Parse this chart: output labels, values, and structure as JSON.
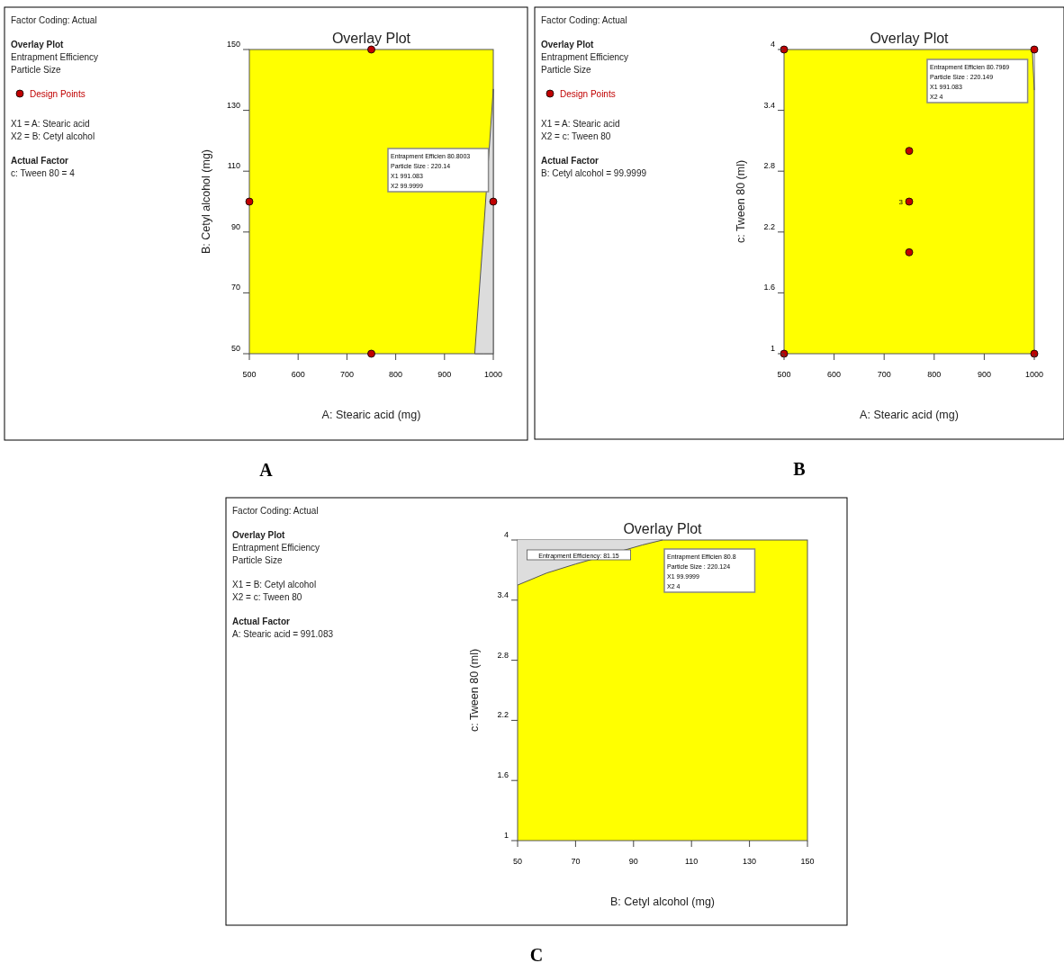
{
  "chart_data": [
    {
      "type": "scatter",
      "title": "Overlay Plot",
      "subtitle": "A",
      "xlabel": "A: Stearic acid  (mg)",
      "ylabel": "B: Cetyl alcohol  (mg)",
      "xlim": [
        500,
        1000
      ],
      "xticks": [
        500,
        600,
        700,
        800,
        900,
        1000
      ],
      "ylim": [
        50,
        150
      ],
      "yticks": [
        50,
        70,
        90,
        110,
        130,
        150
      ],
      "bands": [
        {
          "axis": "y",
          "from": 50,
          "to": 150,
          "color": "#ffff00"
        }
      ],
      "series": [
        {
          "type": "area",
          "color": "#dcdcdc",
          "x": [
            962,
            980,
            1000
          ],
          "values": [
            50,
            90,
            137
          ]
        },
        {
          "name": "Design Points",
          "color": "#c00000",
          "marker": "circle",
          "x": [
            750,
            500,
            1000,
            750
          ],
          "values": [
            150,
            100,
            100,
            50
          ]
        }
      ],
      "legend": "left",
      "annotations": [
        "Factor Coding: Actual",
        "Overlay Plot",
        "Entrapment Efficiency",
        "Particle Size",
        "X1 = A: Stearic acid",
        "X2 = B: Cetyl alcohol",
        "Actual Factor",
        "c: Tween 80 = 4",
        "Entrapment Efficien  80.8003\nParticle Size :  220.14\nX1  991.083\nX2  99.9999"
      ]
    },
    {
      "type": "scatter",
      "title": "Overlay Plot",
      "subtitle": "B",
      "xlabel": "A: Stearic acid  (mg)",
      "ylabel": "c: Tween 80  (ml)",
      "xlim": [
        500,
        1000
      ],
      "xticks": [
        500,
        600,
        700,
        800,
        900,
        1000
      ],
      "ylim": [
        1,
        4
      ],
      "yticks": [
        1,
        1.6,
        2.2,
        2.8,
        3.4,
        4
      ],
      "bands": [
        {
          "axis": "y",
          "from": 1,
          "to": 4,
          "color": "#ffff00"
        }
      ],
      "series": [
        {
          "type": "line",
          "color": "#555555",
          "x": [
            996,
            1000
          ],
          "values": [
            4,
            3.6
          ],
          "lower": [
            4,
            3.6
          ],
          "upper": [
            4,
            4
          ]
        },
        {
          "name": "Design Points",
          "color": "#c00000",
          "marker": "circle",
          "x": [
            500,
            1000,
            750,
            750,
            750,
            500,
            1000
          ],
          "values": [
            4,
            4,
            3,
            2.5,
            2,
            1,
            1
          ],
          "value_labels": [
            null,
            null,
            null,
            "3",
            null,
            null,
            null
          ]
        }
      ],
      "legend": "left",
      "annotations": [
        "Factor Coding: Actual",
        "Overlay Plot",
        "Entrapment Efficiency",
        "Particle Size",
        "X1 = A: Stearic acid",
        "X2 = c: Tween 80",
        "Actual Factor",
        "B: Cetyl alcohol = 99.9999",
        "Entrapment Efficien  80.7969\nParticle Size :  220.149\nX1  991.083\nX2  4"
      ]
    },
    {
      "type": "line",
      "title": "Overlay Plot",
      "subtitle": "C",
      "xlabel": "B: Cetyl alcohol  (mg)",
      "ylabel": "c: Tween 80  (ml)",
      "xlim": [
        50,
        150
      ],
      "xticks": [
        50,
        70,
        90,
        110,
        130,
        150
      ],
      "ylim": [
        1,
        4
      ],
      "yticks": [
        1,
        1.6,
        2.2,
        2.8,
        3.4,
        4
      ],
      "bands": [
        {
          "axis": "y",
          "from": 1,
          "to": 4,
          "color": "#ffff00"
        }
      ],
      "series": [
        {
          "color": "#555555",
          "x": [
            50,
            60,
            70,
            93,
            100
          ],
          "values": [
            3.55,
            3.67,
            3.76,
            3.95,
            4
          ],
          "lower": [
            3.55,
            3.67,
            3.76,
            3.95,
            4
          ],
          "upper": [
            4,
            4,
            4,
            4,
            4
          ]
        }
      ],
      "annotations": [
        "Factor Coding: Actual",
        "Overlay Plot",
        "Entrapment Efficiency",
        "Particle Size",
        "X1 = B: Cetyl alcohol",
        "X2 = c: Tween 80",
        "Actual Factor",
        "A: Stearic acid = 991.083",
        "Entrapment Efficiency: 81.15",
        "Entrapment Efficien  80.8\nParticle Size :  220.124\nX1  99.9999\nX2  4"
      ]
    }
  ]
}
